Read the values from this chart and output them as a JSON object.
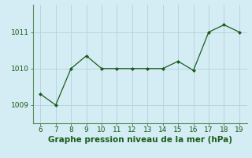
{
  "x": [
    6,
    7,
    8,
    9,
    10,
    11,
    12,
    13,
    14,
    15,
    16,
    17,
    18,
    19
  ],
  "y": [
    1009.3,
    1009.0,
    1010.0,
    1010.35,
    1010.0,
    1010.0,
    1010.0,
    1010.0,
    1010.0,
    1010.2,
    1009.95,
    1011.0,
    1011.2,
    1011.0
  ],
  "line_color": "#1a5c1a",
  "marker_color": "#1a5c1a",
  "bg_color": "#d4edf4",
  "grid_color": "#b8d4dc",
  "xlabel": "Graphe pression niveau de la mer (hPa)",
  "xlabel_color": "#1a5c1a",
  "xlim": [
    5.5,
    19.5
  ],
  "ylim": [
    1008.5,
    1011.75
  ],
  "yticks": [
    1009,
    1010,
    1011
  ],
  "xticks": [
    6,
    7,
    8,
    9,
    10,
    11,
    12,
    13,
    14,
    15,
    16,
    17,
    18,
    19
  ],
  "tick_color": "#1a5c1a",
  "tick_fontsize": 6.5,
  "xlabel_fontsize": 7.5
}
